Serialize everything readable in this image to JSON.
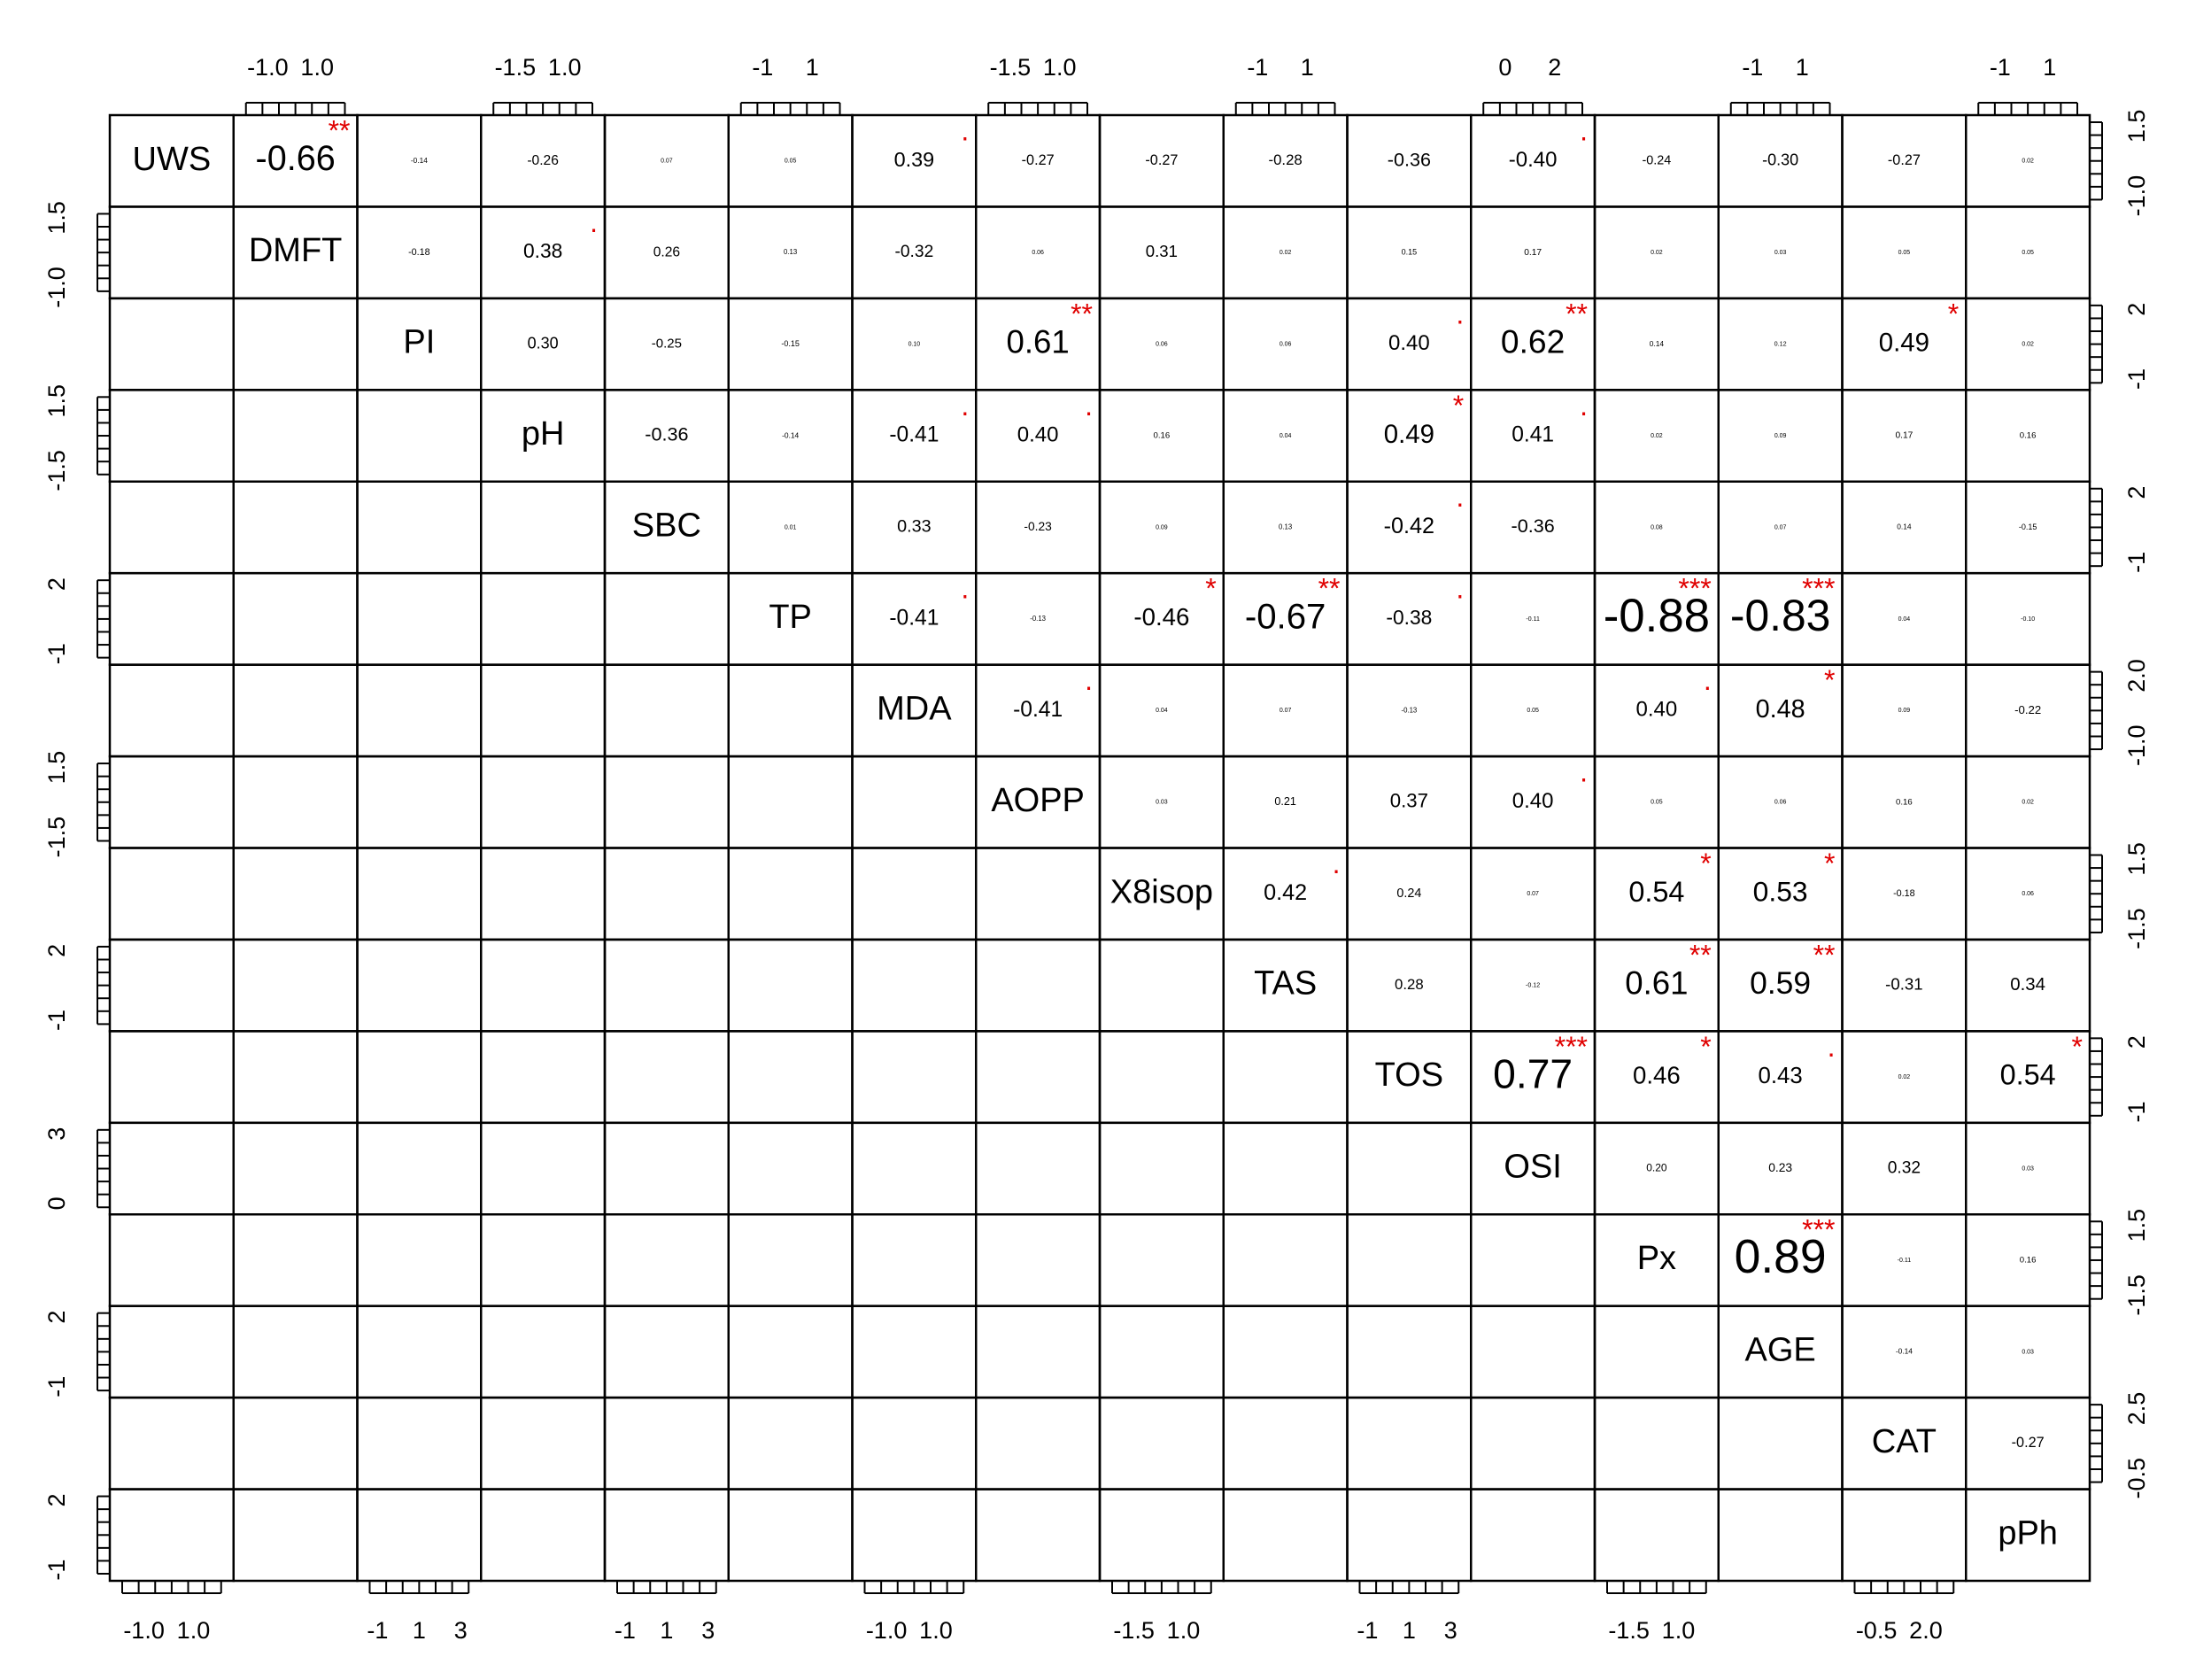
{
  "variables": [
    "UWS",
    "DMFT",
    "PI",
    "pH",
    "SBC",
    "TP",
    "MDA",
    "AOPP",
    "X8isop",
    "TAS",
    "TOS",
    "OSI",
    "Px",
    "AGE",
    "CAT",
    "pPh"
  ],
  "correlations": [
    [
      {
        "r": "-0.66",
        "sig": "**"
      },
      {
        "r": "-0.14"
      },
      {
        "r": "-0.26"
      },
      {
        "r": "0.07"
      },
      {
        "r": "0.05"
      },
      {
        "r": "0.39",
        "sig": "."
      },
      {
        "r": "-0.27"
      },
      {
        "r": "-0.27"
      },
      {
        "r": "-0.28"
      },
      {
        "r": "-0.36"
      },
      {
        "r": "-0.40",
        "sig": "."
      },
      {
        "r": "-0.24"
      },
      {
        "r": "-0.30"
      },
      {
        "r": "-0.27"
      },
      {
        "r": "0.02"
      }
    ],
    [
      {
        "r": "-0.18"
      },
      {
        "r": "0.38",
        "sig": "."
      },
      {
        "r": "0.26"
      },
      {
        "r": "0.13"
      },
      {
        "r": "-0.32"
      },
      {
        "r": "0.06"
      },
      {
        "r": "0.31"
      },
      {
        "r": "0.02"
      },
      {
        "r": "0.15"
      },
      {
        "r": "0.17"
      },
      {
        "r": "0.02"
      },
      {
        "r": "0.03"
      },
      {
        "r": "0.05"
      },
      {
        "r": "0.05"
      }
    ],
    [
      {
        "r": "0.30"
      },
      {
        "r": "-0.25"
      },
      {
        "r": "-0.15"
      },
      {
        "r": "0.10"
      },
      {
        "r": "0.61",
        "sig": "**"
      },
      {
        "r": "0.06"
      },
      {
        "r": "0.06"
      },
      {
        "r": "0.40",
        "sig": "."
      },
      {
        "r": "0.62",
        "sig": "**"
      },
      {
        "r": "0.14"
      },
      {
        "r": "0.12"
      },
      {
        "r": "0.49",
        "sig": "*"
      },
      {
        "r": "0.02"
      }
    ],
    [
      {
        "r": "-0.36"
      },
      {
        "r": "-0.14"
      },
      {
        "r": "-0.41",
        "sig": "."
      },
      {
        "r": "0.40",
        "sig": "."
      },
      {
        "r": "0.16"
      },
      {
        "r": "0.04"
      },
      {
        "r": "0.49",
        "sig": "*"
      },
      {
        "r": "0.41",
        "sig": "."
      },
      {
        "r": "0.02"
      },
      {
        "r": "0.09"
      },
      {
        "r": "0.17"
      },
      {
        "r": "0.16"
      }
    ],
    [
      {
        "r": "0.01"
      },
      {
        "r": "0.33"
      },
      {
        "r": "-0.23"
      },
      {
        "r": "0.09"
      },
      {
        "r": "0.13"
      },
      {
        "r": "-0.42",
        "sig": "."
      },
      {
        "r": "-0.36"
      },
      {
        "r": "0.08"
      },
      {
        "r": "0.07"
      },
      {
        "r": "0.14"
      },
      {
        "r": "-0.15"
      }
    ],
    [
      {
        "r": "-0.41",
        "sig": "."
      },
      {
        "r": "-0.13"
      },
      {
        "r": "-0.46",
        "sig": "*"
      },
      {
        "r": "-0.67",
        "sig": "**"
      },
      {
        "r": "-0.38",
        "sig": "."
      },
      {
        "r": "-0.11"
      },
      {
        "r": "-0.88",
        "sig": "***"
      },
      {
        "r": "-0.83",
        "sig": "***"
      },
      {
        "r": "0.04"
      },
      {
        "r": "-0.10"
      }
    ],
    [
      {
        "r": "-0.41",
        "sig": "."
      },
      {
        "r": "0.04"
      },
      {
        "r": "0.07"
      },
      {
        "r": "-0.13"
      },
      {
        "r": "0.05"
      },
      {
        "r": "0.40",
        "sig": "."
      },
      {
        "r": "0.48",
        "sig": "*"
      },
      {
        "r": "0.09"
      },
      {
        "r": "-0.22"
      }
    ],
    [
      {
        "r": "0.03"
      },
      {
        "r": "0.21"
      },
      {
        "r": "0.37"
      },
      {
        "r": "0.40",
        "sig": "."
      },
      {
        "r": "0.05"
      },
      {
        "r": "0.06"
      },
      {
        "r": "0.16"
      },
      {
        "r": "0.02"
      }
    ],
    [
      {
        "r": "0.42",
        "sig": "."
      },
      {
        "r": "0.24"
      },
      {
        "r": "0.07"
      },
      {
        "r": "0.54",
        "sig": "*"
      },
      {
        "r": "0.53",
        "sig": "*"
      },
      {
        "r": "-0.18"
      },
      {
        "r": "0.06"
      }
    ],
    [
      {
        "r": "0.28"
      },
      {
        "r": "-0.12"
      },
      {
        "r": "0.61",
        "sig": "**"
      },
      {
        "r": "0.59",
        "sig": "**"
      },
      {
        "r": "-0.31"
      },
      {
        "r": "0.34"
      }
    ],
    [
      {
        "r": "0.77",
        "sig": "***"
      },
      {
        "r": "0.46",
        "sig": "*"
      },
      {
        "r": "0.43",
        "sig": "."
      },
      {
        "r": "0.02"
      },
      {
        "r": "0.54",
        "sig": "*"
      }
    ],
    [
      {
        "r": "0.20"
      },
      {
        "r": "0.23"
      },
      {
        "r": "0.32"
      },
      {
        "r": "0.03"
      }
    ],
    [
      {
        "r": "0.89",
        "sig": "***"
      },
      {
        "r": "-0.11"
      },
      {
        "r": "0.16"
      }
    ],
    [
      {
        "r": "-0.14"
      },
      {
        "r": "0.03"
      }
    ],
    [
      {
        "r": "-0.27"
      }
    ]
  ],
  "axis_labels": {
    "top": [
      [
        "-1.0",
        "1.0"
      ],
      [
        "-1.5",
        "1.0"
      ],
      [
        "-1",
        "1"
      ],
      [
        "-1.5",
        "1.0"
      ],
      [
        "-1",
        "1"
      ],
      [
        "0",
        "2"
      ],
      [
        "-1",
        "1"
      ],
      [
        "-1",
        "1"
      ]
    ],
    "bottom": [
      [
        "-1.0",
        "1.0"
      ],
      [
        "-1",
        "1",
        "3"
      ],
      [
        "-1",
        "1",
        "3"
      ],
      [
        "-1.0",
        "1.0"
      ],
      [
        "-1.5",
        "1.0"
      ],
      [
        "-1",
        "1",
        "3"
      ],
      [
        "-1.5",
        "1.0"
      ],
      [
        "-0.5",
        "2.0"
      ]
    ],
    "left": [
      [
        "1.5",
        "-1.0"
      ],
      [
        "1.5",
        "-1.5"
      ],
      [
        "2",
        "-1"
      ],
      [
        "1.5",
        "-1.5"
      ],
      [
        "2",
        "-1"
      ],
      [
        "3",
        "0"
      ],
      [
        "2",
        "-1"
      ],
      [
        "2",
        "-1"
      ]
    ],
    "right": [
      [
        "1.5",
        "-1.0"
      ],
      [
        "2",
        "-1"
      ],
      [
        "2",
        "-1"
      ],
      [
        "2.0",
        "-1.0"
      ],
      [
        "1.5",
        "-1.5"
      ],
      [
        "2",
        "-1"
      ],
      [
        "1.5",
        "-1.5"
      ],
      [
        "2.5",
        "-0.5"
      ]
    ]
  }
}
